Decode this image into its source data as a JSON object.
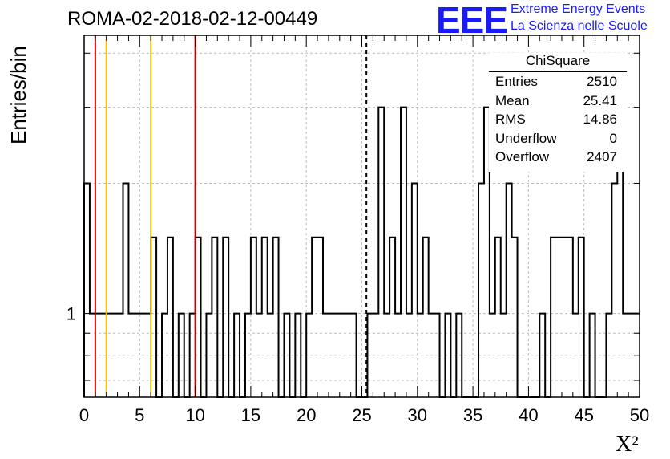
{
  "chart_data": {
    "type": "histogram",
    "title": "ROMA-02-2018-02-12-00449",
    "xlabel": "X²",
    "ylabel": "Entries/bin",
    "xlim": [
      0,
      50
    ],
    "ylim": [
      0.64,
      4.4
    ],
    "log_y": true,
    "grid": true,
    "bin_width": 0.5,
    "x_ticks": [
      0,
      5,
      10,
      15,
      20,
      25,
      30,
      35,
      40,
      45,
      50
    ],
    "y_tick_labels": [
      {
        "value": 1,
        "label": "1"
      }
    ],
    "bins": [
      [
        0.0,
        0.5,
        2
      ],
      [
        0.5,
        1.0,
        1
      ],
      [
        1.0,
        1.5,
        1
      ],
      [
        1.5,
        2.0,
        1
      ],
      [
        2.0,
        2.5,
        1
      ],
      [
        2.5,
        3.0,
        1
      ],
      [
        3.0,
        3.5,
        1
      ],
      [
        3.5,
        4.0,
        2
      ],
      [
        4.0,
        4.5,
        1
      ],
      [
        5.0,
        5.5,
        1
      ],
      [
        5.5,
        6.0,
        1
      ],
      [
        6.0,
        6.5,
        1.5
      ],
      [
        6.5,
        7.0,
        0
      ],
      [
        7.0,
        7.5,
        1
      ],
      [
        7.5,
        8.0,
        1.5
      ],
      [
        8.0,
        8.5,
        0
      ],
      [
        8.5,
        9.0,
        1
      ],
      [
        9.0,
        9.5,
        0
      ],
      [
        9.5,
        10.0,
        1
      ],
      [
        10.0,
        10.5,
        1.5
      ],
      [
        10.5,
        11.0,
        0
      ],
      [
        11.0,
        11.5,
        1
      ],
      [
        11.5,
        12.0,
        1.5
      ],
      [
        12.0,
        12.5,
        0
      ],
      [
        12.5,
        13.0,
        1.5
      ],
      [
        13.0,
        13.5,
        0
      ],
      [
        13.5,
        14.0,
        1
      ],
      [
        14.0,
        14.5,
        0
      ],
      [
        14.5,
        15.0,
        1
      ],
      [
        15.0,
        15.5,
        1.5
      ],
      [
        15.5,
        16.0,
        1
      ],
      [
        16.0,
        16.5,
        1.5
      ],
      [
        16.5,
        17.0,
        1
      ],
      [
        17.0,
        17.5,
        1.5
      ],
      [
        17.5,
        18.0,
        0
      ],
      [
        18.0,
        18.5,
        1
      ],
      [
        18.5,
        19.0,
        0
      ],
      [
        19.0,
        19.5,
        1
      ],
      [
        19.5,
        20.0,
        0
      ],
      [
        20.0,
        20.5,
        1
      ],
      [
        20.5,
        21.5,
        1.5
      ],
      [
        21.5,
        23.0,
        1
      ],
      [
        24.0,
        24.5,
        1
      ],
      [
        24.5,
        25.5,
        0
      ],
      [
        25.5,
        26.5,
        1
      ],
      [
        26.5,
        27.0,
        3
      ],
      [
        27.0,
        27.5,
        1
      ],
      [
        27.5,
        28.0,
        1.5
      ],
      [
        28.0,
        28.5,
        1
      ],
      [
        28.5,
        29.0,
        3
      ],
      [
        29.0,
        29.5,
        1
      ],
      [
        29.5,
        30.0,
        2
      ],
      [
        30.0,
        30.5,
        1
      ],
      [
        30.5,
        31.0,
        1.5
      ],
      [
        31.0,
        31.5,
        1
      ],
      [
        31.5,
        32.0,
        1
      ],
      [
        32.0,
        32.5,
        0
      ],
      [
        32.5,
        33.0,
        1
      ],
      [
        33.0,
        33.5,
        0
      ],
      [
        33.5,
        34.0,
        1
      ],
      [
        34.0,
        35.5,
        0
      ],
      [
        35.5,
        36.0,
        2
      ],
      [
        36.0,
        36.5,
        3
      ],
      [
        36.5,
        37.0,
        1
      ],
      [
        37.0,
        37.5,
        1.5
      ],
      [
        37.5,
        38.0,
        1
      ],
      [
        38.0,
        38.5,
        2
      ],
      [
        38.5,
        39.0,
        1.5
      ],
      [
        39.0,
        41.0,
        0
      ],
      [
        41.0,
        41.5,
        1
      ],
      [
        41.5,
        42.0,
        0
      ],
      [
        42.0,
        44.0,
        1.5
      ],
      [
        44.0,
        44.5,
        1
      ],
      [
        44.5,
        45.0,
        1.5
      ],
      [
        45.0,
        45.5,
        0
      ],
      [
        45.5,
        46.0,
        1
      ],
      [
        46.0,
        47.0,
        0
      ],
      [
        47.0,
        47.5,
        1
      ],
      [
        47.5,
        48.0,
        2
      ],
      [
        48.0,
        48.5,
        2.5
      ],
      [
        48.5,
        49.5,
        1
      ],
      [
        49.5,
        50.0,
        1
      ]
    ],
    "vertical_lines": [
      {
        "x": 1.0,
        "color": "#d00000"
      },
      {
        "x": 2.0,
        "color": "#f0c000"
      },
      {
        "x": 6.0,
        "color": "#f0c000"
      },
      {
        "x": 10.0,
        "color": "#d00000"
      },
      {
        "x": 25.41,
        "color": "#000000",
        "dashed": true
      }
    ]
  },
  "logo": {
    "letters": "EEE",
    "line1": "Extreme Energy Events",
    "line2": "La Scienza nelle Scuole",
    "color": "#1a1aff"
  },
  "stats": {
    "title": "ChiSquare",
    "rows": [
      {
        "label": "Entries",
        "value": "2510"
      },
      {
        "label": "Mean",
        "value": "25.41"
      },
      {
        "label": "RMS",
        "value": "14.86"
      },
      {
        "label": "Underflow",
        "value": "0"
      },
      {
        "label": "Overflow",
        "value": "2407"
      }
    ]
  }
}
